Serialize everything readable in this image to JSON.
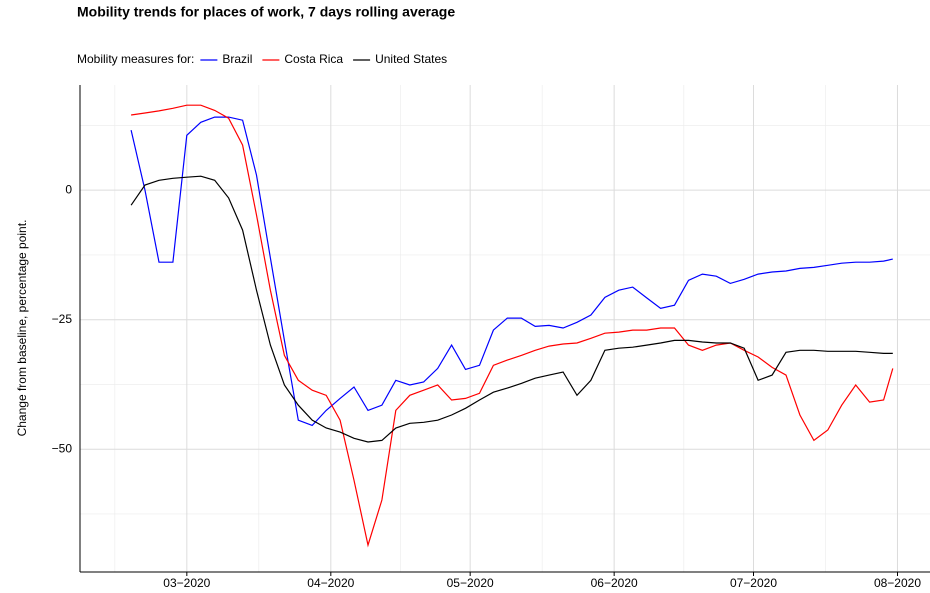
{
  "chart_data": {
    "type": "line",
    "title": "Mobility trends for places of work, 7 days rolling average",
    "legend_title": "Mobility measures for:",
    "legend_position": "top",
    "y_label": "Change from baseline, percentage point.",
    "grid": true,
    "x": [
      49,
      52,
      55,
      58,
      61,
      64,
      67,
      70,
      73,
      76,
      79,
      82,
      85,
      88,
      91,
      94,
      97,
      100,
      103,
      106,
      109,
      112,
      115,
      118,
      121,
      124,
      127,
      130,
      133,
      136,
      139,
      142,
      145,
      148,
      151,
      154,
      157,
      160,
      163,
      166,
      169,
      172,
      175,
      178,
      181,
      184,
      187,
      190,
      193,
      196,
      199,
      202,
      205,
      208,
      211,
      213
    ],
    "xlim": [
      38,
      221
    ],
    "xticks": [
      {
        "value": 61,
        "label": "03−2020"
      },
      {
        "value": 92,
        "label": "04−2020"
      },
      {
        "value": 122,
        "label": "05−2020"
      },
      {
        "value": 153,
        "label": "06−2020"
      },
      {
        "value": 183,
        "label": "07−2020"
      },
      {
        "value": 214,
        "label": "08−2020"
      }
    ],
    "ylim": [
      -73.7,
      20.3
    ],
    "yticks": [
      {
        "value": -50,
        "label": "−50"
      },
      {
        "value": -25,
        "label": "−25"
      },
      0
    ],
    "series": [
      {
        "name": "Brazil",
        "color": "#0000ff",
        "values": [
          11.6,
          0,
          -13.9,
          -13.9,
          10.6,
          13.1,
          14.1,
          14.1,
          13.5,
          2.9,
          -13.1,
          -29,
          -44.4,
          -45.4,
          -42.5,
          -40.2,
          -38,
          -42.5,
          -41.5,
          -36.7,
          -37.6,
          -37,
          -34.4,
          -29.9,
          -34.6,
          -33.8,
          -27,
          -24.7,
          -24.7,
          -26.3,
          -26.1,
          -26.6,
          -25.5,
          -24.1,
          -20.7,
          -19.3,
          -18.7,
          -20.8,
          -22.8,
          -22.2,
          -17.4,
          -16.2,
          -16.6,
          -18,
          -17.2,
          -16.2,
          -15.8,
          -15.6,
          -15.1,
          -14.9,
          -14.5,
          -14.1,
          -13.9,
          -13.9,
          -13.7,
          -13.3
        ]
      },
      {
        "name": "Costa Rica",
        "color": "#ff0000",
        "values": [
          14.5,
          14.9,
          15.3,
          15.8,
          16.4,
          16.4,
          15.4,
          13.9,
          8.7,
          -4.8,
          -19.3,
          -31.9,
          -36.7,
          -38.6,
          -39.6,
          -44.4,
          -56,
          -68.5,
          -59.8,
          -42.5,
          -39.6,
          -38.6,
          -37.6,
          -40.5,
          -40.2,
          -39.2,
          -33.8,
          -32.8,
          -31.9,
          -30.9,
          -30.1,
          -29.7,
          -29.5,
          -28.6,
          -27.6,
          -27.4,
          -27,
          -27,
          -26.6,
          -26.6,
          -29.9,
          -30.9,
          -29.9,
          -29.5,
          -30.9,
          -32.2,
          -34.2,
          -35.7,
          -43.4,
          -48.3,
          -46.3,
          -41.5,
          -37.6,
          -40.9,
          -40.5,
          -34.4
        ]
      },
      {
        "name": "United States",
        "color": "#000000",
        "values": [
          -2.9,
          1,
          1.9,
          2.3,
          2.5,
          2.7,
          1.9,
          -1.5,
          -7.7,
          -19.3,
          -29.9,
          -37.6,
          -41.5,
          -44.4,
          -45.9,
          -46.7,
          -47.9,
          -48.6,
          -48.3,
          -45.9,
          -45,
          -44.8,
          -44.4,
          -43.4,
          -42.1,
          -40.5,
          -39,
          -38.2,
          -37.3,
          -36.3,
          -35.7,
          -35.1,
          -39.6,
          -36.7,
          -30.9,
          -30.5,
          -30.3,
          -29.9,
          -29.5,
          -29,
          -29,
          -29.3,
          -29.5,
          -29.5,
          -30.5,
          -36.7,
          -35.7,
          -31.3,
          -30.9,
          -30.9,
          -31.1,
          -31.1,
          -31.1,
          -31.3,
          -31.5,
          -31.5
        ]
      }
    ]
  }
}
